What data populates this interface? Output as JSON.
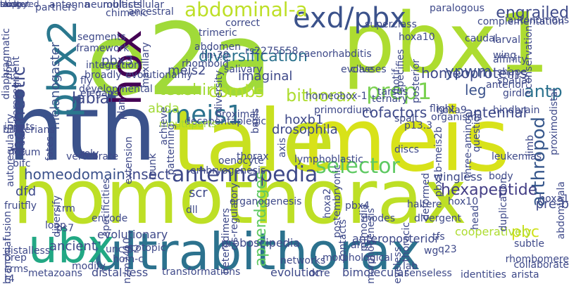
{
  "palette": {
    "lime": "#bddf26",
    "yellow_green": "#addc30",
    "green": "#5ec962",
    "teal": "#21918c",
    "teal_blue": "#2c728e",
    "blue": "#3b528b",
    "indigo": "#414487",
    "purple": "#482878",
    "dark_purple": "#440154",
    "mint": "#7ad151",
    "aqua": "#28ae80"
  },
  "words": [
    {
      "text": "homothorax",
      "color": "#bddf26"
    },
    {
      "text": "hth",
      "color": "#3b528b"
    },
    {
      "text": "e2a",
      "color": "#a0da39"
    },
    {
      "text": "pbx1",
      "color": "#addc30"
    },
    {
      "text": "tale",
      "color": "#c8e020"
    },
    {
      "text": "meis",
      "color": "#d8e219"
    },
    {
      "text": "ultrabithorax",
      "color": "#2c728e"
    },
    {
      "text": "hox",
      "color": "#440154"
    },
    {
      "text": "pbx2",
      "color": "#2a788e"
    },
    {
      "text": "ubx",
      "color": "#22a884"
    },
    {
      "text": "exd/pbx",
      "color": "#3b528b"
    },
    {
      "text": "abdominal-a",
      "color": "#bddf26"
    },
    {
      "text": "meis1",
      "color": "#2c728e"
    },
    {
      "text": "antennapedia",
      "color": "#3e4989"
    },
    {
      "text": "prep1",
      "color": "#7ad151"
    },
    {
      "text": "selector",
      "color": "#5ec962"
    },
    {
      "text": "ypwm",
      "color": "#3b528b"
    },
    {
      "text": "homeotic",
      "color": "#3e4a89"
    },
    {
      "text": "labial",
      "color": "#3e4989"
    },
    {
      "text": "antp",
      "color": "#2c728e"
    },
    {
      "text": "hexapeptide",
      "color": "#433e85"
    },
    {
      "text": "arthropod",
      "color": "#38588c"
    },
    {
      "text": "pbc",
      "color": "#d0e11c"
    },
    {
      "text": "engrailed",
      "color": "#3e4a89"
    },
    {
      "text": "diversification",
      "color": "#2c728e"
    },
    {
      "text": "homeoproteins",
      "color": "#3e4989"
    },
    {
      "text": "cofactors",
      "color": "#3e4989"
    },
    {
      "text": "bithorax",
      "color": "#addc30"
    },
    {
      "text": "combs",
      "color": "#b5de2b"
    },
    {
      "text": "leg",
      "color": "#3b528b"
    },
    {
      "text": "antennal",
      "color": "#3e4989"
    },
    {
      "text": "insect",
      "color": "#3e4989"
    },
    {
      "text": "homeodomain",
      "color": "#3b528b"
    },
    {
      "text": "teashirt",
      "color": "#a2da37"
    },
    {
      "text": "appendages",
      "color": "#5ec962"
    },
    {
      "text": "meis2",
      "color": "#3e4989"
    },
    {
      "text": "pbx3",
      "color": "#3e4989"
    },
    {
      "text": "imaginal",
      "color": "#3e4989"
    },
    {
      "text": "hoxb1",
      "color": "#3e4989"
    },
    {
      "text": "drosophila",
      "color": "#3e4989"
    },
    {
      "text": "abda",
      "color": "#a2da37"
    },
    {
      "text": "dfd",
      "color": "#3e4989"
    },
    {
      "text": "scr",
      "color": "#3e4989"
    },
    {
      "text": "melanogaster",
      "color": "#3b528b"
    },
    {
      "text": "wingless",
      "color": "#3e4989"
    },
    {
      "text": "pre-b",
      "color": "#3e4989"
    },
    {
      "text": "evolutionary",
      "color": "#3e4989"
    },
    {
      "text": "ancient",
      "color": "#3e4989"
    },
    {
      "text": "proboscipedia",
      "color": "#3e4989"
    },
    {
      "text": "anteroposterior",
      "color": "#3e4989"
    },
    {
      "text": "cooperatively",
      "color": "#addc30"
    },
    {
      "text": "hom-c",
      "color": "#3e4989"
    },
    {
      "text": "unc-62",
      "color": "#3e4989"
    },
    {
      "text": "distal-less",
      "color": "#3e4989"
    },
    {
      "text": "evolution",
      "color": "#3e4989"
    },
    {
      "text": "bimolecular",
      "color": "#3e4989"
    },
    {
      "text": "senseless",
      "color": "#3e4989"
    },
    {
      "text": "identities",
      "color": "#3e4989"
    },
    {
      "text": "arista",
      "color": "#3e4989"
    },
    {
      "text": "transformations",
      "color": "#3e4989"
    },
    {
      "text": "metazoans",
      "color": "#3e4989"
    },
    {
      "text": "decapentaplegic",
      "color": "#3e4989"
    },
    {
      "text": "mouthparts",
      "color": "#a2da37"
    },
    {
      "text": "leukemias",
      "color": "#3e4989"
    },
    {
      "text": "haltere",
      "color": "#3e4989"
    },
    {
      "text": "divergent",
      "color": "#3e4989"
    },
    {
      "text": "primordia",
      "color": "#3e4989"
    },
    {
      "text": "fly",
      "color": "#3e4989"
    },
    {
      "text": "elegans",
      "color": "#3e4989"
    },
    {
      "text": "segments",
      "color": "#3e4989"
    },
    {
      "text": "framework",
      "color": "#3e4989"
    },
    {
      "text": "partners",
      "color": "#3e4989"
    },
    {
      "text": "notum",
      "color": "#3e4989"
    },
    {
      "text": "bifc",
      "color": "#3e4989"
    },
    {
      "text": "dpp",
      "color": "#3e4989"
    },
    {
      "text": "crm",
      "color": "#3e4989"
    },
    {
      "text": "ps7",
      "color": "#3e4989"
    },
    {
      "text": "crms",
      "color": "#3e4989"
    },
    {
      "text": "r4",
      "color": "#3e4989"
    },
    {
      "text": "prep",
      "color": "#3e4989"
    },
    {
      "text": "diversify",
      "color": "#3e4989"
    },
    {
      "text": "rely",
      "color": "#3e4989"
    },
    {
      "text": "fates",
      "color": "#3e4989"
    },
    {
      "text": "dll",
      "color": "#3e4989"
    },
    {
      "text": "dcre",
      "color": "#3e4989"
    },
    {
      "text": "q23",
      "color": "#3e4989"
    },
    {
      "text": "wg",
      "color": "#3e4989"
    },
    {
      "text": "tfs",
      "color": "#3e4989"
    },
    {
      "text": "superclass",
      "color": "#3e4989"
    },
    {
      "text": "paralogous",
      "color": "#3e4989"
    },
    {
      "text": "hoxa9",
      "color": "#3e4989"
    },
    {
      "text": "rs2275558",
      "color": "#3e4989"
    },
    {
      "text": "abdomen",
      "color": "#3e4989"
    },
    {
      "text": "trimeric",
      "color": "#3e4989"
    },
    {
      "text": "chimeric",
      "color": "#3e4989"
    },
    {
      "text": "rhomboid",
      "color": "#3e4989"
    },
    {
      "text": "lin-39",
      "color": "#3e4989"
    },
    {
      "text": "caenorhabditis",
      "color": "#3e4989"
    },
    {
      "text": "larval",
      "color": "#3e4989"
    },
    {
      "text": "affinity",
      "color": "#3e4989"
    },
    {
      "text": "conservation",
      "color": "#3e4989"
    },
    {
      "text": "proximodistal",
      "color": "#3e4989"
    },
    {
      "text": "limb",
      "color": "#3e4989"
    },
    {
      "text": "three-amino",
      "color": "#3e4989"
    },
    {
      "text": "deformed",
      "color": "#3e4989"
    },
    {
      "text": "discs",
      "color": "#3e4989"
    },
    {
      "text": "posterior",
      "color": "#3e4989"
    },
    {
      "text": "specifies",
      "color": "#3e4989"
    },
    {
      "text": "evolve",
      "color": "#3e4989"
    },
    {
      "text": "lymphoblastic",
      "color": "#3e4989"
    },
    {
      "text": "thorax",
      "color": "#3e4989"
    },
    {
      "text": "oenocyte",
      "color": "#3e4989"
    },
    {
      "text": "heterodimers",
      "color": "#3e4989"
    },
    {
      "text": "duplication",
      "color": "#3e4989"
    },
    {
      "text": "abdominala",
      "color": "#3e4989"
    },
    {
      "text": "thoracic",
      "color": "#3e4989"
    },
    {
      "text": "morphogenesis",
      "color": "#3e4989"
    },
    {
      "text": "contacts",
      "color": "#3e4989"
    },
    {
      "text": "ecotopic",
      "color": "#3e4989"
    },
    {
      "text": "nzm2410",
      "color": "#3e4989"
    },
    {
      "text": "distalless",
      "color": "#3e4989"
    },
    {
      "text": "modify",
      "color": "#3e4989"
    },
    {
      "text": "encode",
      "color": "#3e4989"
    },
    {
      "text": "fusion",
      "color": "#3e4989"
    },
    {
      "text": "multicellular",
      "color": "#3e4989"
    },
    {
      "text": "neuroblasts",
      "color": "#3e4989"
    },
    {
      "text": "antenna",
      "color": "#3e4989"
    },
    {
      "text": "ancestral",
      "color": "#3e4989"
    },
    {
      "text": "maxillary",
      "color": "#3e4989"
    },
    {
      "text": "extension",
      "color": "#3e4989"
    },
    {
      "text": "plan",
      "color": "#3e4989"
    },
    {
      "text": "evolutionarily",
      "color": "#3e4989"
    },
    {
      "text": "salivary",
      "color": "#3e4989"
    },
    {
      "text": "broadly",
      "color": "#3e4989"
    },
    {
      "text": "integration",
      "color": "#3e4989"
    },
    {
      "text": "parasegment",
      "color": "#3e4989"
    },
    {
      "text": "diaphragmatic",
      "color": "#3e4989"
    },
    {
      "text": "autoregulatory",
      "color": "#3e4989"
    },
    {
      "text": "developmental",
      "color": "#3e4989"
    },
    {
      "text": "ureteric",
      "color": "#3e4989"
    },
    {
      "text": "vertebrate",
      "color": "#3e4989"
    },
    {
      "text": "bilaterians",
      "color": "#3e4989"
    },
    {
      "text": "inputs",
      "color": "#3e4989"
    },
    {
      "text": "fruitfly",
      "color": "#3e4989"
    },
    {
      "text": "loop",
      "color": "#3e4989"
    },
    {
      "text": "branchial",
      "color": "#3e4989"
    },
    {
      "text": "correct",
      "color": "#3e4989"
    },
    {
      "text": "caudal",
      "color": "#3e4989"
    },
    {
      "text": "complementation",
      "color": "#3e4989"
    },
    {
      "text": "autonomous",
      "color": "#3e4989"
    },
    {
      "text": "hoxa10",
      "color": "#3e4989"
    },
    {
      "text": "wing",
      "color": "#3e4989"
    },
    {
      "text": "shape",
      "color": "#3e4989"
    },
    {
      "text": "spatial",
      "color": "#3e4989"
    },
    {
      "text": "anterior",
      "color": "#3e4989"
    },
    {
      "text": "girdle",
      "color": "#3e4989"
    },
    {
      "text": "hindbrain",
      "color": "#3e4989"
    },
    {
      "text": "motif",
      "color": "#3e4989"
    },
    {
      "text": "classes",
      "color": "#3e4989"
    },
    {
      "text": "tarsus",
      "color": "#3e4989"
    },
    {
      "text": "ternary",
      "color": "#3e4989"
    },
    {
      "text": "spalt",
      "color": "#3e4989"
    },
    {
      "text": "flight",
      "color": "#3e4989"
    },
    {
      "text": "organisms",
      "color": "#3e4989"
    },
    {
      "text": "diversity",
      "color": "#3e4989"
    },
    {
      "text": "homeobox-1",
      "color": "#3e4989"
    },
    {
      "text": "primordium",
      "color": "#3e4989"
    },
    {
      "text": "proximal",
      "color": "#3e4989"
    },
    {
      "text": "basis",
      "color": "#3e4989"
    },
    {
      "text": "axis",
      "color": "#3e4989"
    },
    {
      "text": "p13.3",
      "color": "#3e4989"
    },
    {
      "text": "pbx1b-meis2b",
      "color": "#3e4989"
    },
    {
      "text": "question",
      "color": "#3e4989"
    },
    {
      "text": "body",
      "color": "#3e4989"
    },
    {
      "text": "hoxa1",
      "color": "#3e4989"
    },
    {
      "text": "achieve",
      "color": "#3e4989"
    },
    {
      "text": "patterning",
      "color": "#3e4989"
    },
    {
      "text": "trunk",
      "color": "#3e4989"
    },
    {
      "text": "specificities",
      "color": "#3e4989"
    },
    {
      "text": "embryogenesis",
      "color": "#3e4989"
    },
    {
      "text": "organogenesis",
      "color": "#3e4989"
    },
    {
      "text": "cis-regulatory",
      "color": "#3e4989"
    },
    {
      "text": "hoxa2",
      "color": "#3e4989"
    },
    {
      "text": "pbx4",
      "color": "#3e4989"
    },
    {
      "text": "modes",
      "color": "#3e4989"
    },
    {
      "text": "postembryonic",
      "color": "#3e4989"
    },
    {
      "text": "hox10",
      "color": "#3e4989"
    },
    {
      "text": "head",
      "color": "#3e4989"
    },
    {
      "text": "arch",
      "color": "#3e4989"
    },
    {
      "text": "morphological",
      "color": "#3e4989"
    },
    {
      "text": "networks",
      "color": "#3e4989"
    },
    {
      "text": "eyeless",
      "color": "#3e4989"
    },
    {
      "text": "lab",
      "color": "#3e4989"
    },
    {
      "text": "subtle",
      "color": "#3e4989"
    },
    {
      "text": "rhombomere",
      "color": "#3e4989"
    },
    {
      "text": "collaborate",
      "color": "#3e4989"
    },
    {
      "text": "midgut",
      "color": "#3e4989"
    },
    {
      "text": "taxa",
      "color": "#3e4989"
    },
    {
      "text": "clustered",
      "color": "#3e4989"
    },
    {
      "text": "sloppy",
      "color": "#3e4989"
    },
    {
      "text": "bud",
      "color": "#3e4989"
    }
  ]
}
